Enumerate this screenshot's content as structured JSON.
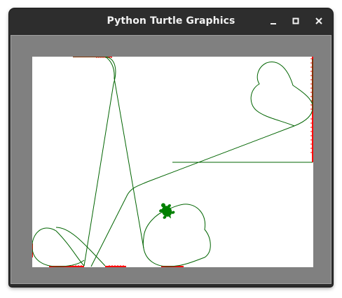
{
  "window": {
    "title": "Python Turtle Graphics"
  },
  "controls": {
    "minimize": "minimize-icon",
    "maximize": "maximize-icon",
    "close": "close-icon"
  },
  "canvas": {
    "background": "#ffffff",
    "frame_color": "#808080",
    "pen_color": "#006400",
    "edge_mark_color": "#ff0000",
    "turtle_color": "#008000"
  }
}
